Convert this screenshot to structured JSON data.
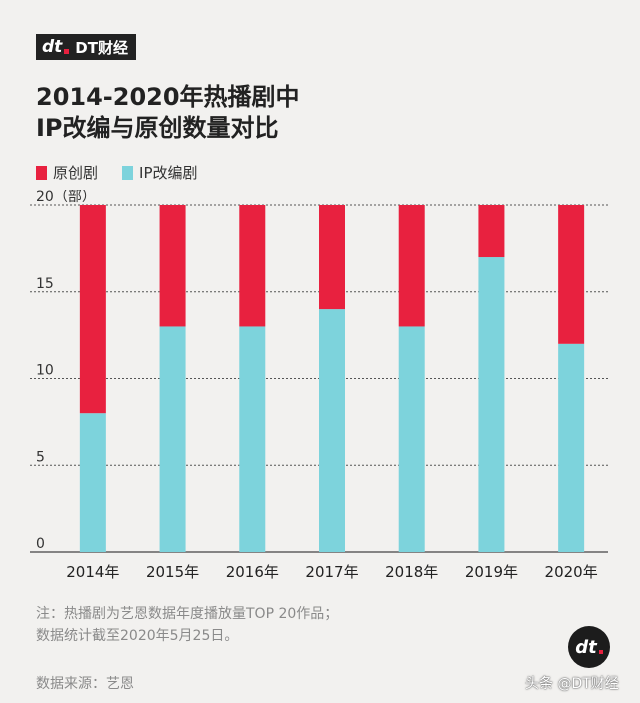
{
  "header": {
    "logo_mark": "dt",
    "logo_text": "DT财经",
    "title_line1": "2014-2020年热播剧中",
    "title_line2": "IP改编与原创数量对比"
  },
  "colors": {
    "original": "#e8213f",
    "ip": "#7dd3dc",
    "background": "#f2f1ef"
  },
  "chart_data": {
    "type": "bar",
    "stacked": true,
    "categories": [
      "2014年",
      "2015年",
      "2016年",
      "2017年",
      "2018年",
      "2019年",
      "2020年"
    ],
    "series": [
      {
        "name": "IP改编剧",
        "values": [
          8,
          13,
          13,
          14,
          13,
          17,
          12
        ]
      },
      {
        "name": "原创剧",
        "values": [
          12,
          7,
          7,
          6,
          7,
          3,
          8
        ]
      }
    ],
    "ylabel": "（部）",
    "ylim": [
      0,
      20
    ],
    "yticks": [
      0,
      5,
      10,
      15,
      20
    ],
    "grid": true,
    "legend_position": "top-left"
  },
  "legend": {
    "original_label": "原创剧",
    "ip_label": "IP改编剧"
  },
  "footer": {
    "note_line1": "注：热播剧为艺恩数据年度播放量TOP 20作品；",
    "note_line2": "数据统计截至2020年5月25日。",
    "source": "数据来源：艺恩",
    "badge_mark": "dt",
    "watermark": "头条 @DT财经"
  }
}
